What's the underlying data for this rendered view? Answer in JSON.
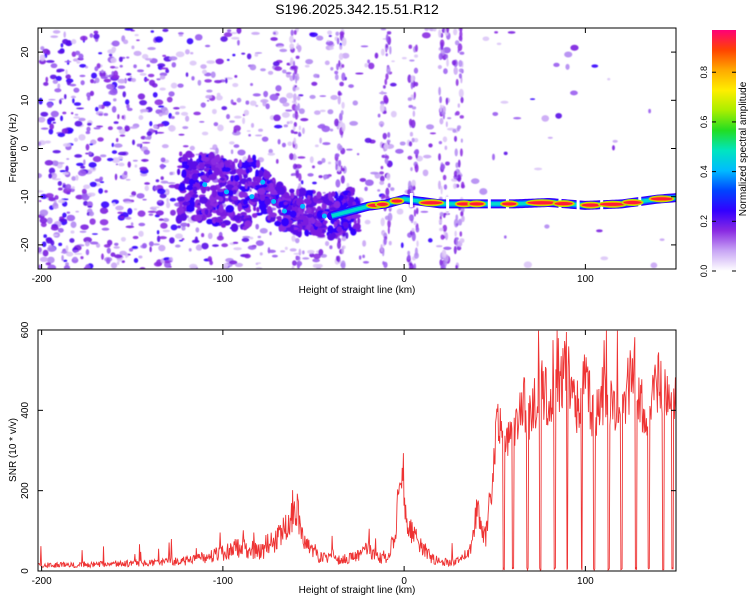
{
  "title": "S196.2025.342.15.51.R12",
  "colors": {
    "snr_line": "#ee3333",
    "axis": "#000000",
    "colormap": [
      "#ffffff",
      "#c9a6f5",
      "#8a2be2",
      "#3300ff",
      "#0044ff",
      "#00bbff",
      "#00e5c0",
      "#22dd22",
      "#aaee00",
      "#ffee00",
      "#ffaa00",
      "#ff4400",
      "#ff0077"
    ]
  },
  "chart_data": [
    {
      "type": "heatmap",
      "title": "S196.2025.342.15.51.R12",
      "xlabel": "Height of straight line (km)",
      "ylabel": "Frequency (Hz)",
      "xlim": [
        -202,
        150
      ],
      "ylim": [
        -25,
        25
      ],
      "x_ticks": [
        -200,
        -100,
        0,
        100
      ],
      "x_tick_labels": [
        "-200",
        "-100",
        "0",
        "100"
      ],
      "y_ticks": [
        -20,
        -10,
        0,
        10,
        20
      ],
      "y_tick_labels": [
        "-20",
        "-10",
        "0",
        "10",
        "20"
      ],
      "colorbar": {
        "label": "Normalized spectral amplitude",
        "range": [
          0,
          0.97
        ],
        "ticks": [
          0.0,
          0.2,
          0.4,
          0.6,
          0.8
        ],
        "tick_labels": [
          "0.0",
          "0.2",
          "0.4",
          "0.6",
          "0.8"
        ]
      },
      "ridge": {
        "description_points_km_hz": [
          [
            -110,
            -8
          ],
          [
            -100,
            -9
          ],
          [
            -90,
            -10
          ],
          [
            -80,
            -8
          ],
          [
            -70,
            -12
          ],
          [
            -60,
            -13
          ],
          [
            -40,
            -14
          ],
          [
            -30,
            -13
          ],
          [
            -20,
            -12
          ],
          [
            -10,
            -11.5
          ],
          [
            0,
            -10.5
          ],
          [
            20,
            -11.5
          ],
          [
            40,
            -11.5
          ],
          [
            60,
            -11.5
          ],
          [
            80,
            -11.2
          ],
          [
            100,
            -11.8
          ],
          [
            120,
            -11.5
          ],
          [
            140,
            -10.5
          ],
          [
            150,
            -10.2
          ]
        ]
      }
    },
    {
      "type": "line",
      "xlabel": "Height of straight line (km)",
      "ylabel": "SNR (10 * v/v)",
      "xlim": [
        -202,
        150
      ],
      "ylim": [
        0,
        600
      ],
      "x_ticks": [
        -200,
        -100,
        0,
        100
      ],
      "x_tick_labels": [
        "-200",
        "-100",
        "0",
        "100"
      ],
      "y_ticks": [
        0,
        200,
        400,
        600
      ],
      "y_tick_labels": [
        "0",
        "200",
        "400",
        "600"
      ],
      "series": [
        {
          "name": "SNR",
          "x": [
            -202,
            -180,
            -160,
            -140,
            -130,
            -120,
            -110,
            -100,
            -90,
            -80,
            -75,
            -70,
            -65,
            -60,
            -55,
            -50,
            -45,
            -40,
            -35,
            -30,
            -25,
            -20,
            -15,
            -10,
            -5,
            -2,
            0,
            2,
            5,
            10,
            15,
            20,
            25,
            30,
            35,
            38,
            40,
            42,
            45,
            48,
            50,
            52,
            55,
            60,
            65,
            70,
            75,
            80,
            85,
            90,
            95,
            100,
            105,
            110,
            115,
            120,
            125,
            130,
            135,
            140,
            145,
            150
          ],
          "values": [
            15,
            15,
            18,
            20,
            22,
            25,
            35,
            45,
            60,
            50,
            45,
            80,
            110,
            170,
            70,
            50,
            30,
            40,
            25,
            35,
            40,
            55,
            40,
            30,
            90,
            260,
            180,
            120,
            90,
            60,
            30,
            25,
            20,
            25,
            40,
            80,
            150,
            120,
            80,
            180,
            300,
            380,
            310,
            350,
            420,
            380,
            470,
            420,
            440,
            520,
            400,
            470,
            380,
            440,
            420,
            400,
            480,
            420,
            380,
            470,
            420,
            400
          ]
        }
      ],
      "dropouts_x": [
        55,
        60,
        68,
        75,
        83,
        90,
        98,
        105,
        113,
        120,
        128,
        135,
        143,
        148
      ]
    }
  ]
}
